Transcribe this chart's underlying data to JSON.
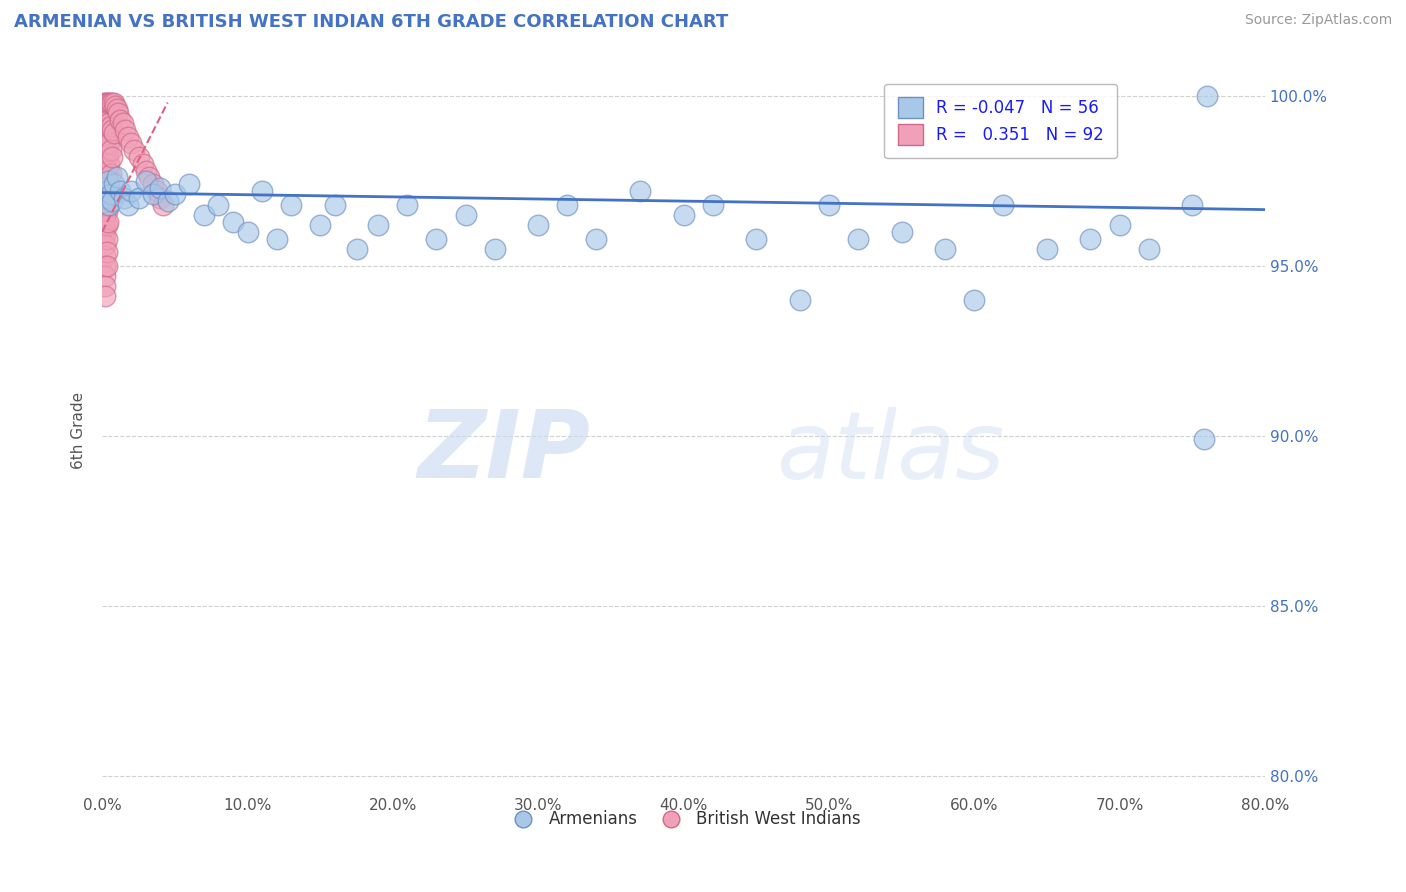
{
  "title": "ARMENIAN VS BRITISH WEST INDIAN 6TH GRADE CORRELATION CHART",
  "source_text": "Source: ZipAtlas.com",
  "ylabel": "6th Grade",
  "xlim": [
    0.0,
    0.8
  ],
  "ylim": [
    0.795,
    1.008
  ],
  "xticks": [
    0.0,
    0.1,
    0.2,
    0.3,
    0.4,
    0.5,
    0.6,
    0.7,
    0.8
  ],
  "xticklabels": [
    "0.0%",
    "10.0%",
    "20.0%",
    "30.0%",
    "40.0%",
    "50.0%",
    "60.0%",
    "70.0%",
    "80.0%"
  ],
  "yticks": [
    0.8,
    0.85,
    0.9,
    0.95,
    1.0
  ],
  "yticklabels": [
    "80.0%",
    "85.0%",
    "90.0%",
    "95.0%",
    "100.0%"
  ],
  "legend_armenians": "Armenians",
  "legend_bwi": "British West Indians",
  "R_armenians": -0.047,
  "N_armenians": 56,
  "R_bwi": 0.351,
  "N_bwi": 92,
  "blue_color": "#A8C8E8",
  "pink_color": "#F0A0B8",
  "blue_edge": "#7090C0",
  "pink_edge": "#D06888",
  "blue_line_color": "#4472C4",
  "pink_line_color": "#E06080",
  "background_color": "#FFFFFF",
  "grid_color": "#CCCCCC",
  "watermark_zip": "ZIP",
  "watermark_atlas": "atlas",
  "arm_x": [
    0.001,
    0.002,
    0.003,
    0.004,
    0.005,
    0.006,
    0.007,
    0.008,
    0.01,
    0.012,
    0.015,
    0.018,
    0.02,
    0.025,
    0.03,
    0.035,
    0.04,
    0.045,
    0.05,
    0.06,
    0.07,
    0.08,
    0.09,
    0.1,
    0.11,
    0.12,
    0.13,
    0.15,
    0.16,
    0.175,
    0.19,
    0.21,
    0.23,
    0.25,
    0.27,
    0.3,
    0.32,
    0.34,
    0.37,
    0.4,
    0.42,
    0.45,
    0.48,
    0.5,
    0.52,
    0.55,
    0.58,
    0.6,
    0.62,
    0.65,
    0.68,
    0.7,
    0.72,
    0.75,
    0.76,
    0.758
  ],
  "arm_y": [
    0.973,
    0.97,
    0.972,
    0.975,
    0.968,
    0.971,
    0.969,
    0.974,
    0.976,
    0.972,
    0.97,
    0.968,
    0.972,
    0.97,
    0.975,
    0.971,
    0.973,
    0.969,
    0.971,
    0.974,
    0.965,
    0.968,
    0.963,
    0.96,
    0.972,
    0.958,
    0.968,
    0.962,
    0.968,
    0.955,
    0.962,
    0.968,
    0.958,
    0.965,
    0.955,
    0.962,
    0.968,
    0.958,
    0.972,
    0.965,
    0.968,
    0.958,
    0.94,
    0.968,
    0.958,
    0.96,
    0.955,
    0.94,
    0.968,
    0.955,
    0.958,
    0.962,
    0.955,
    0.968,
    1.0,
    0.899
  ],
  "bwi_x": [
    0.001,
    0.001,
    0.001,
    0.001,
    0.001,
    0.001,
    0.001,
    0.001,
    0.001,
    0.001,
    0.001,
    0.001,
    0.001,
    0.001,
    0.001,
    0.001,
    0.001,
    0.001,
    0.001,
    0.001,
    0.002,
    0.002,
    0.002,
    0.002,
    0.002,
    0.002,
    0.002,
    0.002,
    0.002,
    0.002,
    0.002,
    0.002,
    0.002,
    0.002,
    0.002,
    0.002,
    0.002,
    0.002,
    0.002,
    0.002,
    0.003,
    0.003,
    0.003,
    0.003,
    0.003,
    0.003,
    0.003,
    0.003,
    0.003,
    0.003,
    0.003,
    0.003,
    0.003,
    0.004,
    0.004,
    0.004,
    0.004,
    0.004,
    0.004,
    0.004,
    0.004,
    0.005,
    0.005,
    0.005,
    0.005,
    0.005,
    0.006,
    0.006,
    0.006,
    0.006,
    0.007,
    0.007,
    0.007,
    0.008,
    0.008,
    0.009,
    0.01,
    0.011,
    0.012,
    0.014,
    0.016,
    0.018,
    0.02,
    0.022,
    0.025,
    0.028,
    0.03,
    0.032,
    0.035,
    0.038,
    0.04,
    0.042
  ],
  "bwi_y": [
    0.998,
    0.996,
    0.994,
    0.992,
    0.99,
    0.988,
    0.986,
    0.984,
    0.982,
    0.98,
    0.978,
    0.976,
    0.974,
    0.972,
    0.97,
    0.968,
    0.966,
    0.964,
    0.962,
    0.96,
    0.998,
    0.995,
    0.992,
    0.989,
    0.986,
    0.983,
    0.98,
    0.977,
    0.974,
    0.971,
    0.968,
    0.965,
    0.962,
    0.959,
    0.956,
    0.953,
    0.95,
    0.947,
    0.944,
    0.941,
    0.998,
    0.994,
    0.99,
    0.986,
    0.982,
    0.978,
    0.974,
    0.97,
    0.966,
    0.962,
    0.958,
    0.954,
    0.95,
    0.998,
    0.993,
    0.988,
    0.983,
    0.978,
    0.973,
    0.968,
    0.963,
    0.998,
    0.992,
    0.986,
    0.98,
    0.974,
    0.998,
    0.991,
    0.984,
    0.977,
    0.998,
    0.99,
    0.982,
    0.998,
    0.989,
    0.997,
    0.996,
    0.995,
    0.993,
    0.992,
    0.99,
    0.988,
    0.986,
    0.984,
    0.982,
    0.98,
    0.978,
    0.976,
    0.974,
    0.972,
    0.97,
    0.968
  ],
  "blue_trend_x0": 0.0,
  "blue_trend_y0": 0.9715,
  "blue_trend_x1": 0.8,
  "blue_trend_y1": 0.9665,
  "pink_trend_x0": 0.0,
  "pink_trend_y0": 0.96,
  "pink_trend_x1": 0.045,
  "pink_trend_y1": 0.998
}
